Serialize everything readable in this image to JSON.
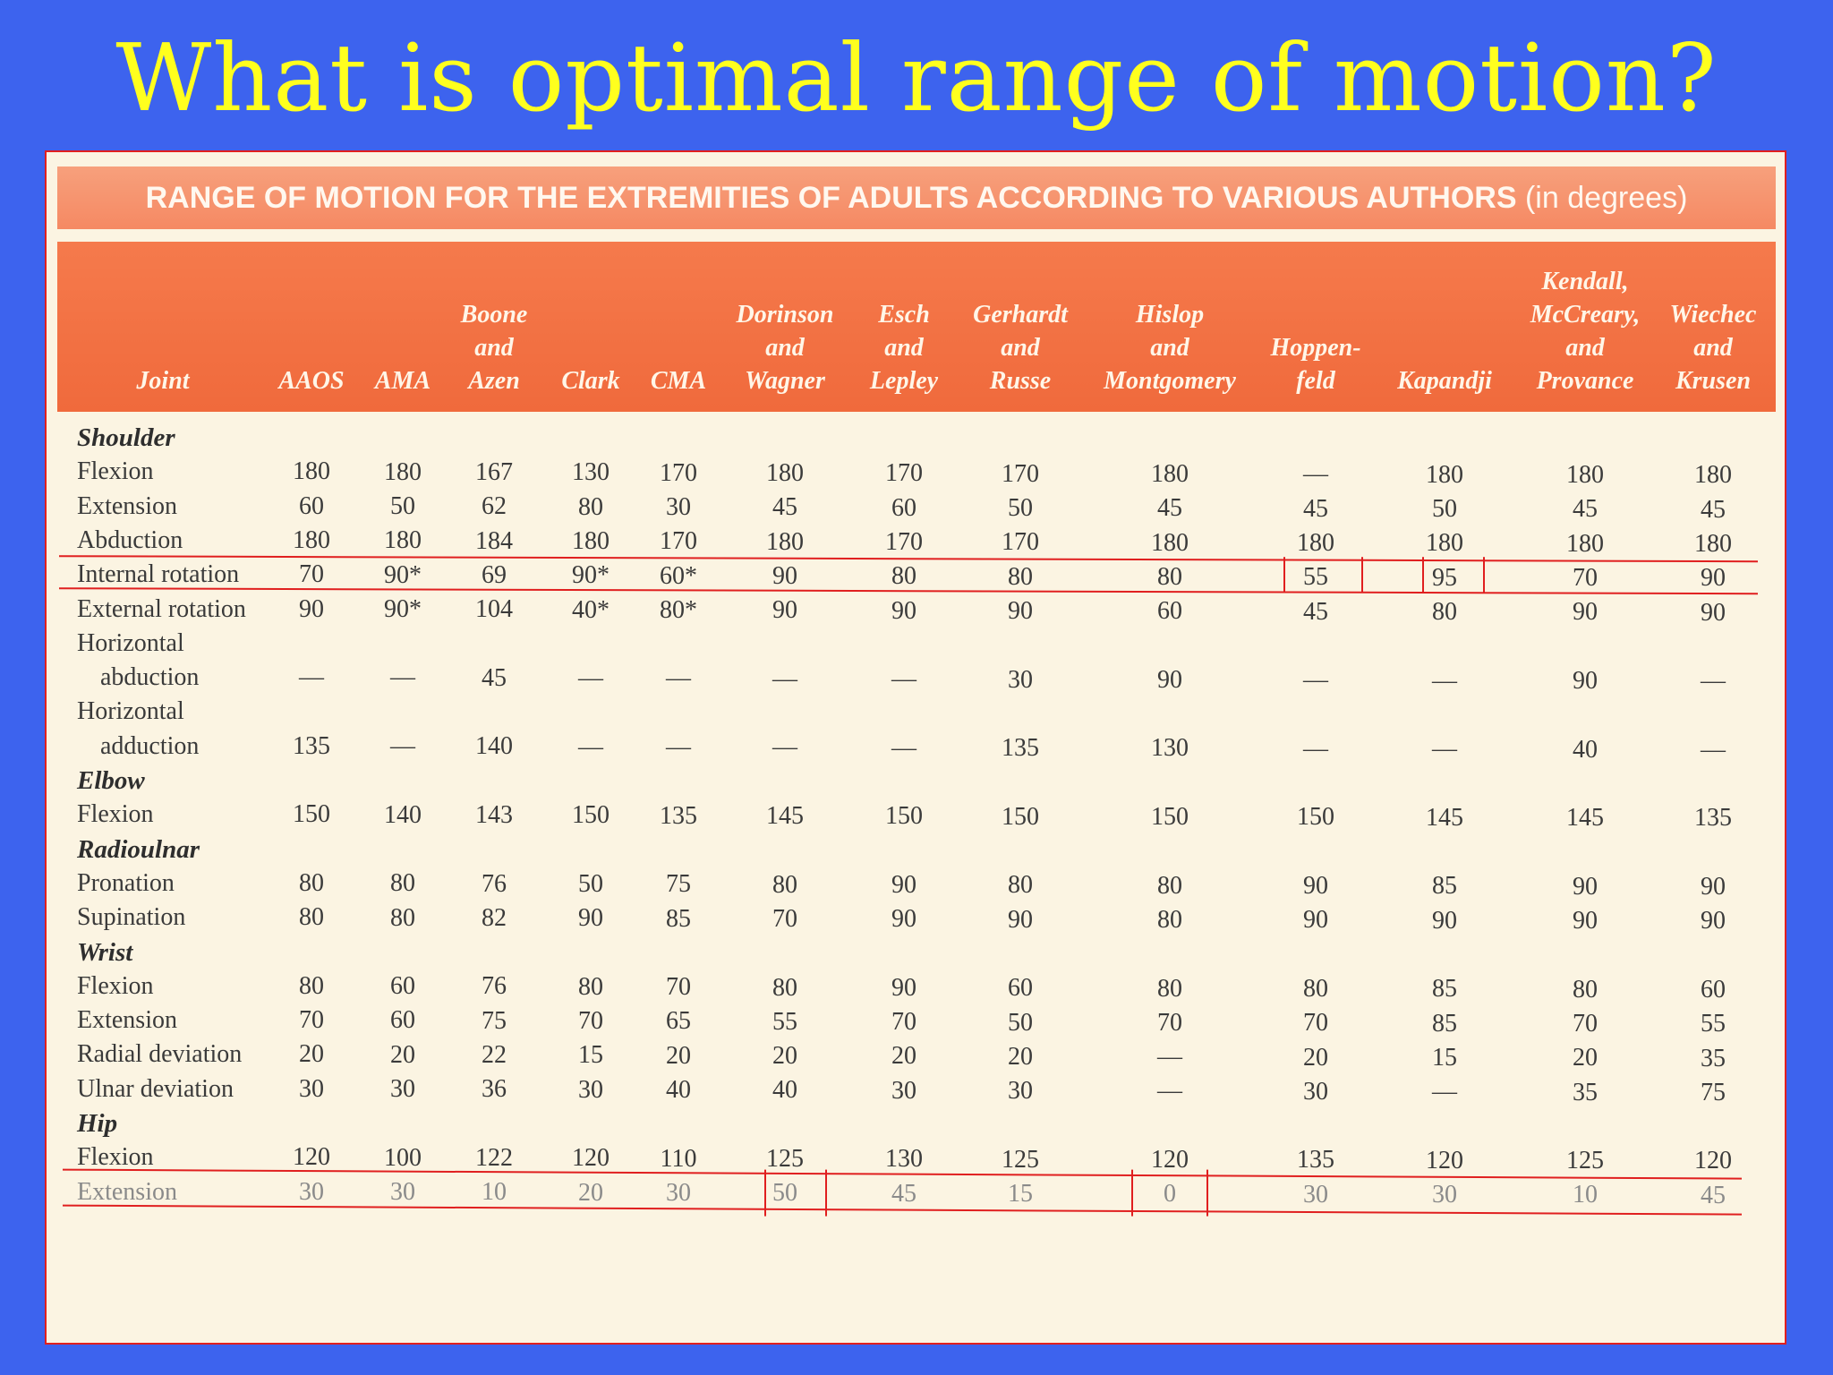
{
  "slide": {
    "title": "What is optimal range of motion?"
  },
  "table": {
    "banner_title": "RANGE OF MOTION FOR THE EXTREMITIES OF ADULTS ACCORDING TO VARIOUS AUTHORS",
    "banner_unit": "(in degrees)",
    "columns": [
      {
        "lines": [
          "Joint"
        ]
      },
      {
        "lines": [
          "AAOS"
        ]
      },
      {
        "lines": [
          "AMA"
        ]
      },
      {
        "lines": [
          "Boone",
          "and",
          "Azen"
        ]
      },
      {
        "lines": [
          "Clark"
        ]
      },
      {
        "lines": [
          "CMA"
        ]
      },
      {
        "lines": [
          "Dorinson",
          "and",
          "Wagner"
        ]
      },
      {
        "lines": [
          "Esch",
          "and",
          "Lepley"
        ]
      },
      {
        "lines": [
          "Gerhardt",
          "and",
          "Russe"
        ]
      },
      {
        "lines": [
          "Hislop",
          "and",
          "Montgomery"
        ]
      },
      {
        "lines": [
          "Hoppen-",
          "feld"
        ]
      },
      {
        "lines": [
          "Kapandji"
        ]
      },
      {
        "lines": [
          "Kendall,",
          "McCreary,",
          "and",
          "Provance"
        ]
      },
      {
        "lines": [
          "Wiechec",
          "and",
          "Krusen"
        ]
      }
    ],
    "sections": [
      {
        "name": "Shoulder",
        "rows": [
          {
            "joint": "Flexion",
            "values": [
              "180",
              "180",
              "167",
              "130",
              "170",
              "180",
              "170",
              "170",
              "180",
              "—",
              "180",
              "180",
              "180"
            ]
          },
          {
            "joint": "Extension",
            "values": [
              "60",
              "50",
              "62",
              "80",
              "30",
              "45",
              "60",
              "50",
              "45",
              "45",
              "50",
              "45",
              "45"
            ]
          },
          {
            "joint": "Abduction",
            "values": [
              "180",
              "180",
              "184",
              "180",
              "170",
              "180",
              "170",
              "170",
              "180",
              "180",
              "180",
              "180",
              "180"
            ]
          },
          {
            "joint": "Internal rotation",
            "values": [
              "70",
              "90*",
              "69",
              "90*",
              "60*",
              "90",
              "80",
              "80",
              "80",
              "55",
              "95",
              "70",
              "90"
            ]
          },
          {
            "joint": "External rotation",
            "values": [
              "90",
              "90*",
              "104",
              "40*",
              "80*",
              "90",
              "90",
              "90",
              "60",
              "45",
              "80",
              "90",
              "90"
            ]
          },
          {
            "joint": "Horizontal",
            "values": []
          },
          {
            "joint": "abduction",
            "indent": true,
            "values": [
              "—",
              "—",
              "45",
              "—",
              "—",
              "—",
              "—",
              "30",
              "90",
              "—",
              "—",
              "90",
              "—"
            ]
          },
          {
            "joint": "Horizontal",
            "values": []
          },
          {
            "joint": "adduction",
            "indent": true,
            "values": [
              "135",
              "—",
              "140",
              "—",
              "—",
              "—",
              "—",
              "135",
              "130",
              "—",
              "—",
              "40",
              "—"
            ]
          }
        ]
      },
      {
        "name": "Elbow",
        "rows": [
          {
            "joint": "Flexion",
            "values": [
              "150",
              "140",
              "143",
              "150",
              "135",
              "145",
              "150",
              "150",
              "150",
              "150",
              "145",
              "145",
              "135"
            ]
          }
        ]
      },
      {
        "name": "Radioulnar",
        "rows": [
          {
            "joint": "Pronation",
            "values": [
              "80",
              "80",
              "76",
              "50",
              "75",
              "80",
              "90",
              "80",
              "80",
              "90",
              "85",
              "90",
              "90"
            ]
          },
          {
            "joint": "Supination",
            "values": [
              "80",
              "80",
              "82",
              "90",
              "85",
              "70",
              "90",
              "90",
              "80",
              "90",
              "90",
              "90",
              "90"
            ]
          }
        ]
      },
      {
        "name": "Wrist",
        "rows": [
          {
            "joint": "Flexion",
            "values": [
              "80",
              "60",
              "76",
              "80",
              "70",
              "80",
              "90",
              "60",
              "80",
              "80",
              "85",
              "80",
              "60"
            ]
          },
          {
            "joint": "Extension",
            "values": [
              "70",
              "60",
              "75",
              "70",
              "65",
              "55",
              "70",
              "50",
              "70",
              "70",
              "85",
              "70",
              "55"
            ]
          },
          {
            "joint": "Radial deviation",
            "values": [
              "20",
              "20",
              "22",
              "15",
              "20",
              "20",
              "20",
              "20",
              "—",
              "20",
              "15",
              "20",
              "35"
            ]
          },
          {
            "joint": "Ulnar deviation",
            "values": [
              "30",
              "30",
              "36",
              "30",
              "40",
              "40",
              "30",
              "30",
              "—",
              "30",
              "—",
              "35",
              "75"
            ]
          }
        ]
      },
      {
        "name": "Hip",
        "rows": [
          {
            "joint": "Flexion",
            "values": [
              "120",
              "100",
              "122",
              "120",
              "110",
              "125",
              "130",
              "125",
              "120",
              "135",
              "120",
              "125",
              "120"
            ]
          },
          {
            "joint": "Extension",
            "faded": true,
            "values": [
              "30",
              "30",
              "10",
              "20",
              "30",
              "50",
              "45",
              "15",
              "0",
              "30",
              "30",
              "10",
              "45"
            ]
          }
        ]
      }
    ]
  },
  "colors": {
    "background": "#3d63ee",
    "title": "#ffff1e",
    "header": "#f06a3c",
    "annotation": "#e01f1f"
  }
}
